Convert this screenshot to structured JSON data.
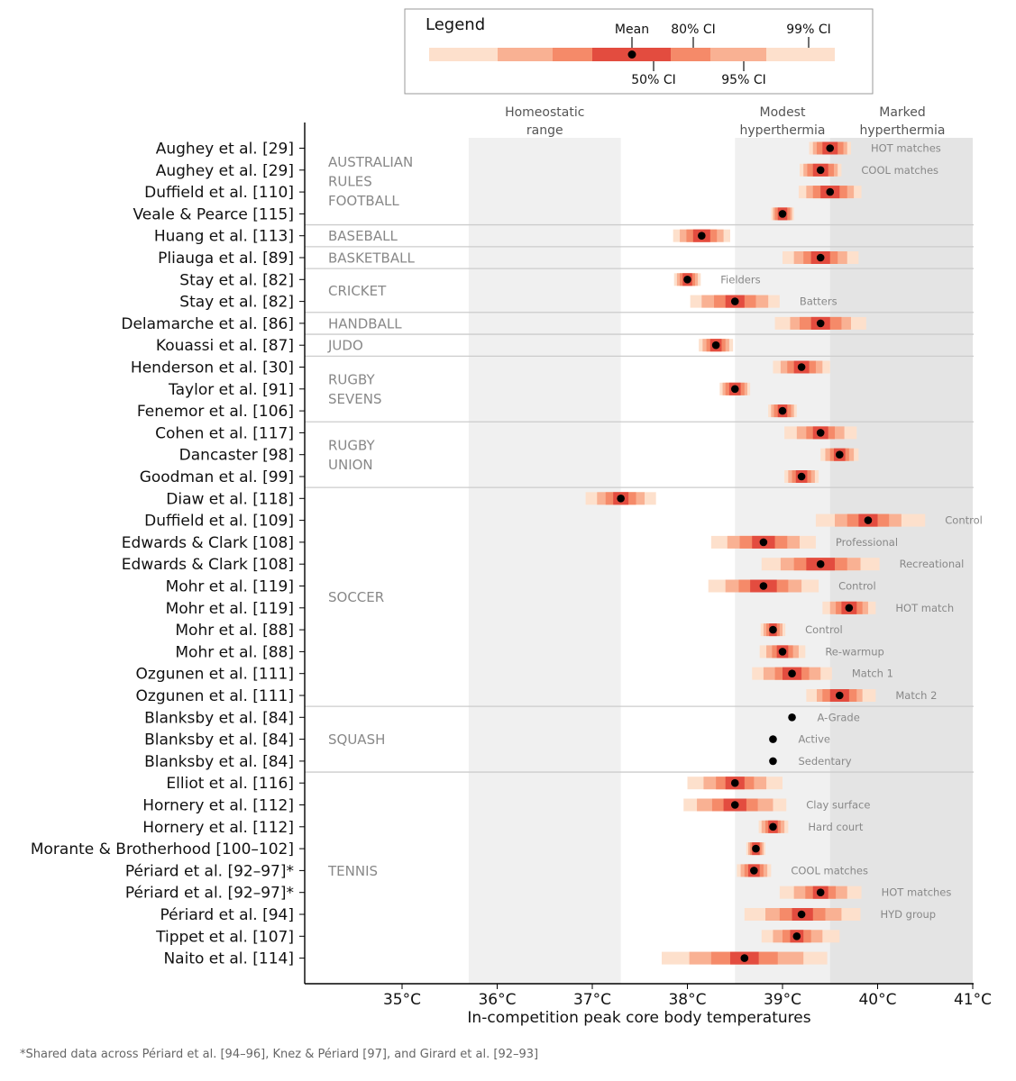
{
  "chart_data": {
    "type": "interval",
    "xlabel": "In-competition peak core body temperatures",
    "xlim": [
      34,
      41
    ],
    "x_ticks": [
      35,
      36,
      37,
      38,
      39,
      40,
      41
    ],
    "x_tick_labels": [
      "35°C",
      "36°C",
      "37°C",
      "38°C",
      "39°C",
      "40°C",
      "41°C"
    ],
    "footnote": "*Shared data across Périard et al. [94–96], Knez & Périard [97], and Girard et al. [92–93]",
    "legend": {
      "title": "Legend",
      "labels": {
        "mean": "Mean",
        "ci50": "50% CI",
        "ci80": "80% CI",
        "ci95": "95% CI",
        "ci99": "99% CI"
      },
      "placement": "top"
    },
    "zones": [
      {
        "name": "Homeostatic range",
        "lines": [
          "Homeostatic",
          "range"
        ],
        "from": 35.7,
        "to": 37.3,
        "color": "#f0f0f0"
      },
      {
        "name": "Modest hyperthermia",
        "lines": [
          "Modest",
          "hyperthermia"
        ],
        "from": 38.5,
        "to": 39.5,
        "color": "#f0f0f0"
      },
      {
        "name": "Marked hyperthermia",
        "lines": [
          "Marked",
          "hyperthermia"
        ],
        "from": 39.5,
        "to": 41.0,
        "color": "#e4e4e4"
      }
    ],
    "colors": {
      "ci99": "#fde0cc",
      "ci95": "#f9b193",
      "ci80": "#f58a69",
      "ci50": "#e34c3f",
      "mean": "#000000",
      "axis": "#000000",
      "separator": "#cccccc",
      "sport_label": "#888888",
      "annotation": "#888888"
    },
    "groups": [
      {
        "sport": "AUSTRALIAN RULES FOOTBALL",
        "lines": [
          "AUSTRALIAN",
          "RULES",
          "FOOTBALL"
        ],
        "start": 0,
        "end": 3
      },
      {
        "sport": "BASEBALL",
        "lines": [
          "BASEBALL"
        ],
        "start": 4,
        "end": 4
      },
      {
        "sport": "BASKETBALL",
        "lines": [
          "BASKETBALL"
        ],
        "start": 5,
        "end": 5
      },
      {
        "sport": "CRICKET",
        "lines": [
          "CRICKET"
        ],
        "start": 6,
        "end": 7
      },
      {
        "sport": "HANDBALL",
        "lines": [
          "HANDBALL"
        ],
        "start": 8,
        "end": 8
      },
      {
        "sport": "JUDO",
        "lines": [
          "JUDO"
        ],
        "start": 9,
        "end": 9
      },
      {
        "sport": "RUGBY SEVENS",
        "lines": [
          "RUGBY",
          "SEVENS"
        ],
        "start": 10,
        "end": 12
      },
      {
        "sport": "RUGBY UNION",
        "lines": [
          "RUGBY",
          "UNION"
        ],
        "start": 13,
        "end": 15
      },
      {
        "sport": "SOCCER",
        "lines": [
          "SOCCER"
        ],
        "start": 16,
        "end": 25
      },
      {
        "sport": "SQUASH",
        "lines": [
          "SQUASH"
        ],
        "start": 26,
        "end": 28
      },
      {
        "sport": "TENNIS",
        "lines": [
          "TENNIS"
        ],
        "start": 29,
        "end": 37
      }
    ],
    "studies": [
      {
        "label": "Aughey et al. [29]",
        "mean": 39.5,
        "ci50": [
          39.42,
          39.58
        ],
        "ci80": [
          39.36,
          39.64
        ],
        "ci95": [
          39.32,
          39.68
        ],
        "ci99": [
          39.28,
          39.72
        ],
        "note": "HOT matches"
      },
      {
        "label": "Aughey et al. [29]",
        "mean": 39.4,
        "ci50": [
          39.32,
          39.48
        ],
        "ci80": [
          39.26,
          39.54
        ],
        "ci95": [
          39.22,
          39.58
        ],
        "ci99": [
          39.18,
          39.62
        ],
        "note": "COOL matches"
      },
      {
        "label": "Duffield et al. [110]",
        "mean": 39.5,
        "ci50": [
          39.4,
          39.6
        ],
        "ci80": [
          39.32,
          39.68
        ],
        "ci95": [
          39.25,
          39.75
        ],
        "ci99": [
          39.17,
          39.83
        ],
        "note": ""
      },
      {
        "label": "Veale & Pearce [115]",
        "mean": 39.0,
        "ci50": [
          38.95,
          39.05
        ],
        "ci80": [
          38.92,
          39.08
        ],
        "ci95": [
          38.9,
          39.1
        ],
        "ci99": [
          38.88,
          39.12
        ],
        "note": ""
      },
      {
        "label": "Huang et al. [113]",
        "mean": 38.15,
        "ci50": [
          38.06,
          38.24
        ],
        "ci80": [
          37.99,
          38.31
        ],
        "ci95": [
          37.92,
          38.38
        ],
        "ci99": [
          37.85,
          38.45
        ],
        "note": ""
      },
      {
        "label": "Pliauga et al. [89]",
        "mean": 39.4,
        "ci50": [
          39.3,
          39.5
        ],
        "ci80": [
          39.22,
          39.58
        ],
        "ci95": [
          39.12,
          39.68
        ],
        "ci99": [
          39.0,
          39.8
        ],
        "note": ""
      },
      {
        "label": "Stay et al. [82]",
        "mean": 38.0,
        "ci50": [
          37.95,
          38.05
        ],
        "ci80": [
          37.92,
          38.08
        ],
        "ci95": [
          37.89,
          38.11
        ],
        "ci99": [
          37.86,
          38.14
        ],
        "note": "Fielders"
      },
      {
        "label": "Stay et al. [82]",
        "mean": 38.5,
        "ci50": [
          38.4,
          38.6
        ],
        "ci80": [
          38.28,
          38.72
        ],
        "ci95": [
          38.15,
          38.85
        ],
        "ci99": [
          38.03,
          38.97
        ],
        "note": "Batters"
      },
      {
        "label": "Delamarche et al. [86]",
        "mean": 39.4,
        "ci50": [
          39.3,
          39.5
        ],
        "ci80": [
          39.18,
          39.62
        ],
        "ci95": [
          39.08,
          39.72
        ],
        "ci99": [
          38.92,
          39.88
        ],
        "note": ""
      },
      {
        "label": "Kouassi et al. [87]",
        "mean": 38.3,
        "ci50": [
          38.24,
          38.36
        ],
        "ci80": [
          38.2,
          38.4
        ],
        "ci95": [
          38.16,
          38.44
        ],
        "ci99": [
          38.12,
          38.48
        ],
        "note": ""
      },
      {
        "label": "Henderson et al. [30]",
        "mean": 39.2,
        "ci50": [
          39.12,
          39.28
        ],
        "ci80": [
          39.05,
          39.35
        ],
        "ci95": [
          38.98,
          39.42
        ],
        "ci99": [
          38.9,
          39.5
        ],
        "note": ""
      },
      {
        "label": "Taylor et al. [91]",
        "mean": 38.5,
        "ci50": [
          38.44,
          38.56
        ],
        "ci80": [
          38.4,
          38.6
        ],
        "ci95": [
          38.37,
          38.63
        ],
        "ci99": [
          38.34,
          38.66
        ],
        "note": ""
      },
      {
        "label": "Fenemor et al. [106]",
        "mean": 39.0,
        "ci50": [
          38.95,
          39.05
        ],
        "ci80": [
          38.91,
          39.09
        ],
        "ci95": [
          38.88,
          39.12
        ],
        "ci99": [
          38.85,
          39.15
        ],
        "note": ""
      },
      {
        "label": "Cohen et al. [117]",
        "mean": 39.4,
        "ci50": [
          39.32,
          39.48
        ],
        "ci80": [
          39.25,
          39.55
        ],
        "ci95": [
          39.15,
          39.65
        ],
        "ci99": [
          39.02,
          39.78
        ],
        "note": ""
      },
      {
        "label": "Dancaster [98]",
        "mean": 39.6,
        "ci50": [
          39.54,
          39.66
        ],
        "ci80": [
          39.5,
          39.7
        ],
        "ci95": [
          39.45,
          39.75
        ],
        "ci99": [
          39.4,
          39.8
        ],
        "note": ""
      },
      {
        "label": "Goodman et al. [99]",
        "mean": 39.2,
        "ci50": [
          39.14,
          39.26
        ],
        "ci80": [
          39.1,
          39.3
        ],
        "ci95": [
          39.06,
          39.34
        ],
        "ci99": [
          39.02,
          39.38
        ],
        "note": ""
      },
      {
        "label": "Diaw et al. [118]",
        "mean": 37.3,
        "ci50": [
          37.22,
          37.38
        ],
        "ci80": [
          37.14,
          37.46
        ],
        "ci95": [
          37.05,
          37.55
        ],
        "ci99": [
          36.93,
          37.67
        ],
        "note": ""
      },
      {
        "label": "Duffield et al. [109]",
        "mean": 39.9,
        "ci50": [
          39.8,
          40.0
        ],
        "ci80": [
          39.68,
          40.12
        ],
        "ci95": [
          39.55,
          40.25
        ],
        "ci99": [
          39.35,
          40.5
        ],
        "note": "Control"
      },
      {
        "label": "Edwards & Clark [108]",
        "mean": 38.8,
        "ci50": [
          38.68,
          38.92
        ],
        "ci80": [
          38.55,
          39.05
        ],
        "ci95": [
          38.42,
          39.18
        ],
        "ci99": [
          38.25,
          39.35
        ],
        "note": "Professional"
      },
      {
        "label": "Edwards & Clark [108]",
        "mean": 39.4,
        "ci50": [
          39.25,
          39.55
        ],
        "ci80": [
          39.12,
          39.68
        ],
        "ci95": [
          38.98,
          39.82
        ],
        "ci99": [
          38.78,
          40.02
        ],
        "note": "Recreational"
      },
      {
        "label": "Mohr et al. [119]",
        "mean": 38.8,
        "ci50": [
          38.66,
          38.94
        ],
        "ci80": [
          38.54,
          39.06
        ],
        "ci95": [
          38.4,
          39.2
        ],
        "ci99": [
          38.22,
          39.38
        ],
        "note": "Control"
      },
      {
        "label": "Mohr et al. [119]",
        "mean": 39.7,
        "ci50": [
          39.62,
          39.78
        ],
        "ci80": [
          39.56,
          39.84
        ],
        "ci95": [
          39.5,
          39.9
        ],
        "ci99": [
          39.42,
          39.98
        ],
        "note": "HOT match"
      },
      {
        "label": "Mohr et al. [88]",
        "mean": 38.9,
        "ci50": [
          38.86,
          38.94
        ],
        "ci80": [
          38.83,
          38.97
        ],
        "ci95": [
          38.8,
          39.0
        ],
        "ci99": [
          38.77,
          39.03
        ],
        "note": "Control"
      },
      {
        "label": "Mohr et al. [88]",
        "mean": 39.0,
        "ci50": [
          38.94,
          39.06
        ],
        "ci80": [
          38.89,
          39.11
        ],
        "ci95": [
          38.83,
          39.17
        ],
        "ci99": [
          38.76,
          39.24
        ],
        "note": "Re-warmup"
      },
      {
        "label": "Ozgunen et al. [111]",
        "mean": 39.1,
        "ci50": [
          39.0,
          39.2
        ],
        "ci80": [
          38.92,
          39.28
        ],
        "ci95": [
          38.8,
          39.4
        ],
        "ci99": [
          38.68,
          39.52
        ],
        "note": "Match 1"
      },
      {
        "label": "Ozgunen et al. [111]",
        "mean": 39.6,
        "ci50": [
          39.5,
          39.7
        ],
        "ci80": [
          39.42,
          39.78
        ],
        "ci95": [
          39.36,
          39.84
        ],
        "ci99": [
          39.25,
          39.98
        ],
        "note": "Match 2"
      },
      {
        "label": "Blanksby et al. [84]",
        "mean": 39.1,
        "note": "A-Grade"
      },
      {
        "label": "Blanksby et al. [84]",
        "mean": 38.9,
        "note": "Active"
      },
      {
        "label": "Blanksby et al. [84]",
        "mean": 38.9,
        "note": "Sedentary"
      },
      {
        "label": "Elliot et al. [116]",
        "mean": 38.5,
        "ci50": [
          38.4,
          38.6
        ],
        "ci80": [
          38.3,
          38.7
        ],
        "ci95": [
          38.17,
          38.83
        ],
        "ci99": [
          38.0,
          39.0
        ],
        "note": ""
      },
      {
        "label": "Hornery et al. [112]",
        "mean": 38.5,
        "ci50": [
          38.38,
          38.62
        ],
        "ci80": [
          38.26,
          38.74
        ],
        "ci95": [
          38.1,
          38.9
        ],
        "ci99": [
          37.96,
          39.04
        ],
        "note": "Clay surface"
      },
      {
        "label": "Hornery et al. [112]",
        "mean": 38.9,
        "ci50": [
          38.85,
          38.95
        ],
        "ci80": [
          38.82,
          38.98
        ],
        "ci95": [
          38.78,
          39.02
        ],
        "ci99": [
          38.75,
          39.06
        ],
        "note": "Hard court"
      },
      {
        "label": "Morante & Brotherhood [100–102]",
        "mean": 38.72,
        "ci50": [
          38.68,
          38.76
        ],
        "ci80": [
          38.66,
          38.78
        ],
        "ci95": [
          38.64,
          38.8
        ],
        "ci99": [
          38.62,
          38.82
        ],
        "note": ""
      },
      {
        "label": "Périard et al. [92–97]*",
        "mean": 38.7,
        "ci50": [
          38.64,
          38.76
        ],
        "ci80": [
          38.6,
          38.8
        ],
        "ci95": [
          38.56,
          38.84
        ],
        "ci99": [
          38.52,
          38.88
        ],
        "note": "COOL matches"
      },
      {
        "label": "Périard et al. [92–97]*",
        "mean": 39.4,
        "ci50": [
          39.32,
          39.48
        ],
        "ci80": [
          39.24,
          39.56
        ],
        "ci95": [
          39.12,
          39.68
        ],
        "ci99": [
          38.97,
          39.83
        ],
        "note": "HOT matches"
      },
      {
        "label": "Périard et al. [94]",
        "mean": 39.2,
        "ci50": [
          39.1,
          39.32
        ],
        "ci80": [
          38.97,
          39.45
        ],
        "ci95": [
          38.82,
          39.62
        ],
        "ci99": [
          38.6,
          39.82
        ],
        "note": "HYD group"
      },
      {
        "label": "Tippet et al. [107]",
        "mean": 39.15,
        "ci50": [
          39.08,
          39.22
        ],
        "ci80": [
          39.0,
          39.3
        ],
        "ci95": [
          38.9,
          39.42
        ],
        "ci99": [
          38.78,
          39.6
        ],
        "note": ""
      },
      {
        "label": "Naito et al. [114]",
        "mean": 38.6,
        "ci50": [
          38.45,
          38.75
        ],
        "ci80": [
          38.25,
          38.95
        ],
        "ci95": [
          38.02,
          39.22
        ],
        "ci99": [
          37.73,
          39.47
        ],
        "note": ""
      }
    ]
  }
}
